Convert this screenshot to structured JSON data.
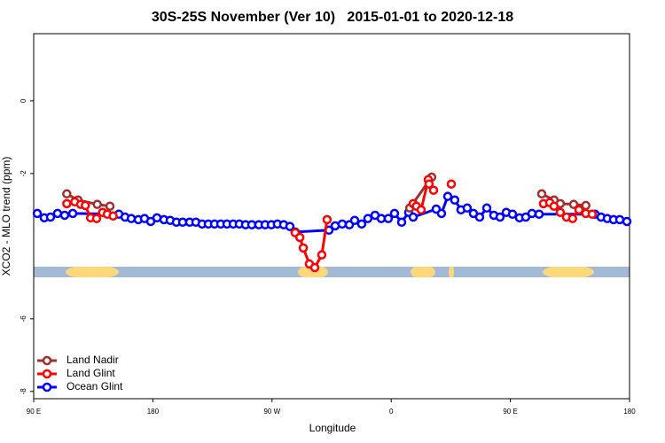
{
  "chart_data": {
    "type": "line",
    "title": "30S-25S November (Ver 10)   2015-01-01 to 2020-12-18",
    "xlabel": "Longitude",
    "ylabel": "XCO2 - MLO trend (ppm)",
    "xlim": [
      90,
      540
    ],
    "ylim": [
      -8.2,
      1.85
    ],
    "xticks": [
      {
        "value": 90,
        "label": "90 E"
      },
      180,
      {
        "value": 270,
        "label": "90 W"
      },
      {
        "value": 360,
        "label": "0"
      },
      {
        "value": 450,
        "label": "90 E"
      },
      {
        "value": 540,
        "label": "180"
      }
    ],
    "yticks": [
      -8,
      -6,
      -2,
      0
    ],
    "legend": "bottom-left",
    "series": [
      {
        "name": "Land Nadir",
        "color": "#a03030",
        "x": [
          115,
          123.5,
          138,
          147.6,
          null,
          374,
          390.6,
          null,
          473.7,
          483,
          487.7,
          497.8,
          507
        ],
        "values": [
          -2.56,
          -2.73,
          -2.85,
          -2.9,
          null,
          -2.95,
          -2.1,
          null,
          -2.56,
          -2.73,
          -2.83,
          -2.85,
          -2.88
        ]
      },
      {
        "name": "Land Glint",
        "color": "#ff0000",
        "x": [
          115,
          121,
          125.5,
          129,
          133,
          137.5,
          142,
          145.6,
          150,
          null,
          287.5,
          291,
          293.6,
          298.2,
          302.3,
          307.6,
          311.6,
          null,
          376.6,
          379,
          382.6,
          388,
          388.6,
          392,
          null,
          405.4,
          null,
          475,
          479.7,
          483,
          487.7,
          492.4,
          497,
          501.8,
          507,
          511.8
        ],
        "values": [
          -2.83,
          -2.78,
          -2.85,
          -2.88,
          -3.22,
          -3.24,
          -3.07,
          -3.12,
          -3.17,
          null,
          -3.63,
          -3.76,
          -4.05,
          -4.49,
          -4.59,
          -4.24,
          -3.27,
          null,
          -2.83,
          -2.9,
          -3.0,
          -2.17,
          -2.29,
          -2.46,
          null,
          -2.29,
          null,
          -2.83,
          -2.8,
          -2.9,
          -3.07,
          -3.2,
          -3.24,
          -3.0,
          -3.1,
          -3.12
        ]
      },
      {
        "name": "Ocean Glint",
        "color": "#0000ff",
        "x": [
          92.7,
          98,
          102.7,
          108,
          113.4,
          119.5,
          154.3,
          159,
          163.7,
          169,
          173.7,
          178.4,
          183.1,
          188.4,
          193.1,
          197.8,
          202.5,
          207.8,
          212.5,
          217.2,
          221.9,
          226.6,
          231.3,
          236,
          240.7,
          245.3,
          250,
          254.7,
          260,
          264.8,
          269.5,
          274.1,
          278.8,
          283.5,
          287.5,
          313,
          317.7,
          323,
          328.4,
          332.4,
          337.7,
          342.4,
          347.8,
          352.5,
          357.8,
          362.5,
          367.9,
          373.2,
          376.6,
          394,
          398,
          402.7,
          408,
          412.7,
          417.4,
          422.1,
          426.8,
          432.2,
          437.5,
          442.2,
          446.9,
          451.6,
          456.9,
          461.6,
          466.3,
          471.7,
          513.9,
          518.5,
          523.2,
          527.9,
          532.6,
          538
        ],
        "values": [
          -3.1,
          -3.22,
          -3.2,
          -3.1,
          -3.15,
          -3.1,
          -3.12,
          -3.2,
          -3.24,
          -3.27,
          -3.24,
          -3.32,
          -3.22,
          -3.27,
          -3.29,
          -3.34,
          -3.34,
          -3.34,
          -3.34,
          -3.39,
          -3.39,
          -3.39,
          -3.39,
          -3.39,
          -3.39,
          -3.39,
          -3.41,
          -3.41,
          -3.41,
          -3.41,
          -3.41,
          -3.39,
          -3.41,
          -3.46,
          -3.61,
          -3.56,
          -3.44,
          -3.39,
          -3.41,
          -3.29,
          -3.39,
          -3.24,
          -3.15,
          -3.24,
          -3.24,
          -3.1,
          -3.34,
          -3.07,
          -3.2,
          -2.98,
          -3.1,
          -2.63,
          -2.73,
          -3.0,
          -2.95,
          -3.1,
          -3.2,
          -2.95,
          -3.15,
          -3.2,
          -3.07,
          -3.12,
          -3.22,
          -3.2,
          -3.1,
          -3.12,
          -3.12,
          -3.2,
          -3.24,
          -3.27,
          -3.27,
          -3.32
        ]
      }
    ]
  }
}
